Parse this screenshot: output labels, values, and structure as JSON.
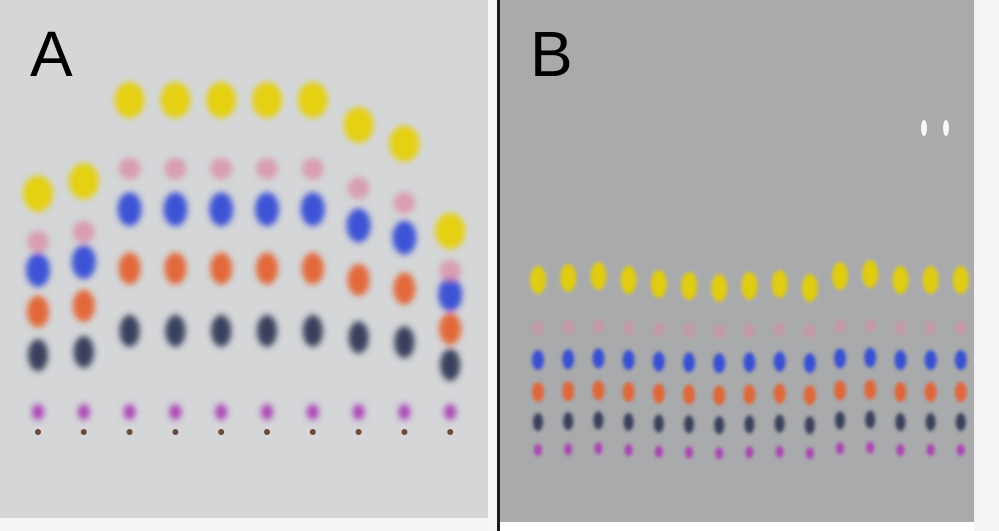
{
  "panels": [
    {
      "label": "A",
      "plate_color": "#d4d6d8",
      "lane_count": 10,
      "lane_stack_percent": [
        70,
        74,
        100,
        100,
        100,
        100,
        100,
        92,
        86,
        58
      ]
    },
    {
      "label": "B",
      "plate_color": "#a9aaac",
      "lane_count": 15
    }
  ],
  "bands": [
    {
      "color_name": "yellow",
      "hex": "#e6cf00"
    },
    {
      "color_name": "pink",
      "hex": "#d98ba6"
    },
    {
      "color_name": "blue",
      "hex": "#2f46d6"
    },
    {
      "color_name": "orange",
      "hex": "#e4602b"
    },
    {
      "color_name": "dark-navy",
      "hex": "#2d3452"
    },
    {
      "color_name": "purple",
      "hex": "#a838b4"
    }
  ]
}
